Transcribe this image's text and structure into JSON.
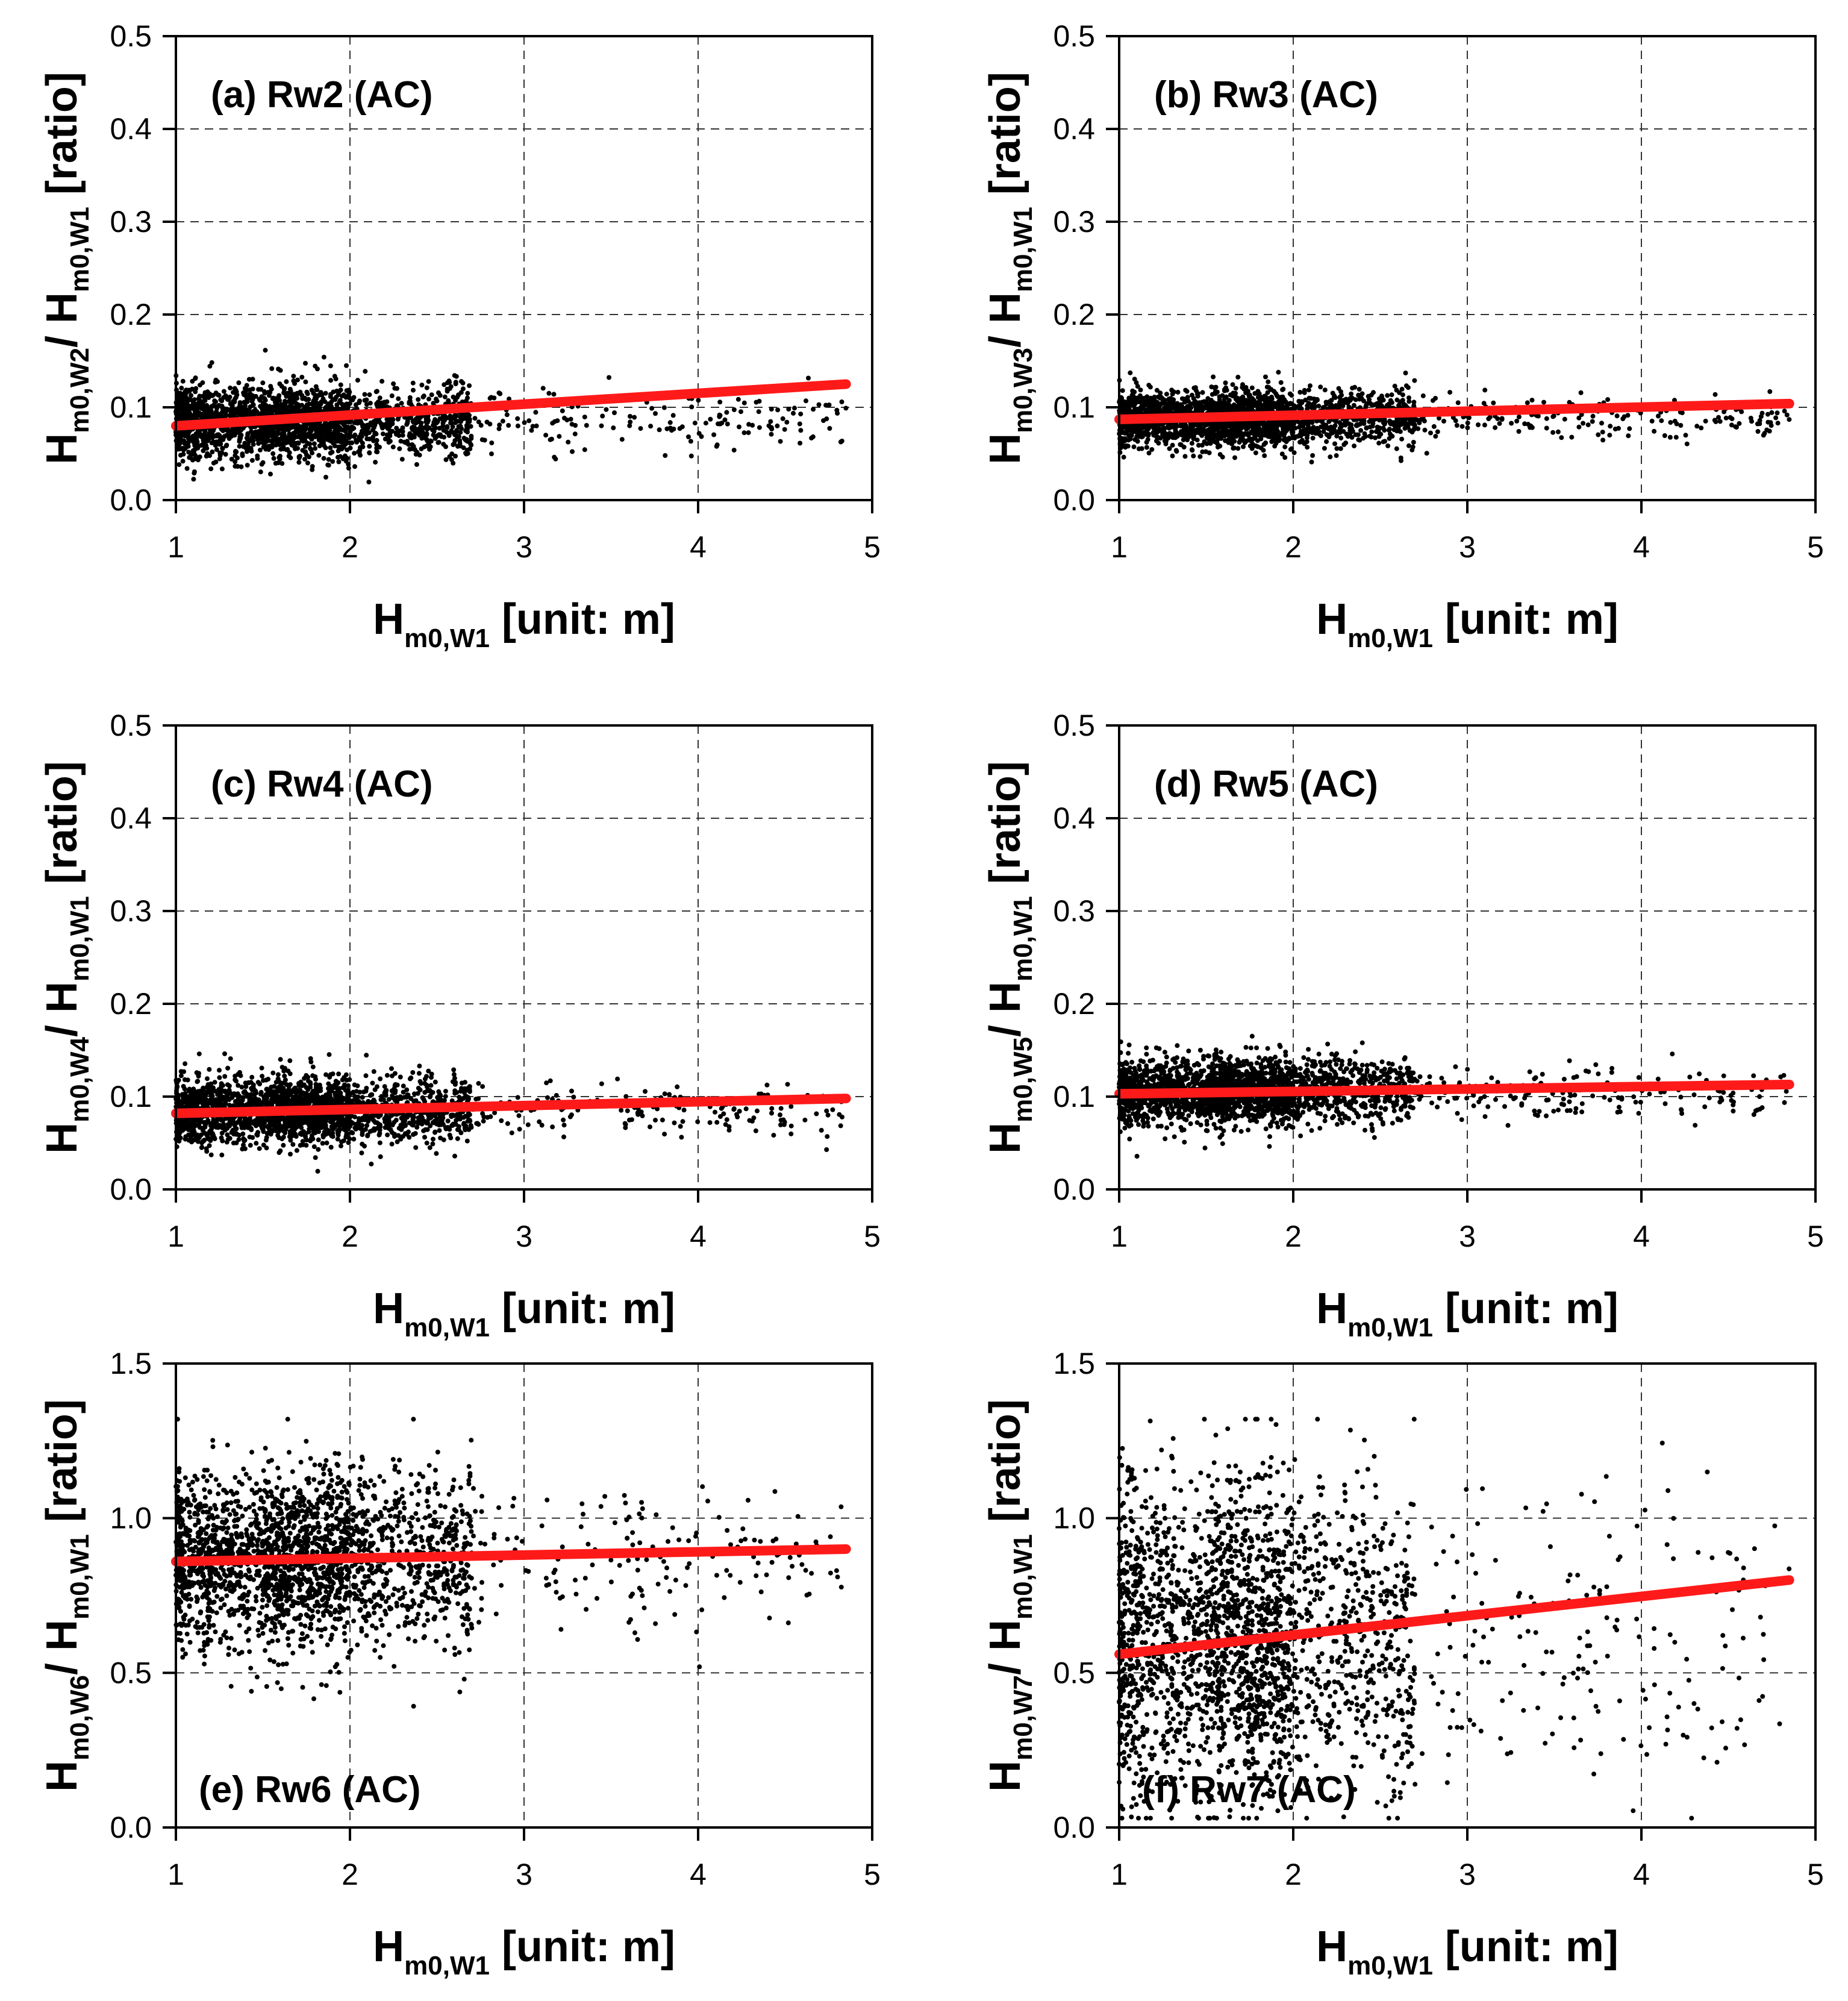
{
  "chart_data": [
    {
      "type": "scatter",
      "id": "a",
      "title": "(a) Rw2 (AC)",
      "xlabel": {
        "main": "H",
        "sub": "m0,W1",
        "rest": " [unit: m]"
      },
      "ylabel": {
        "main1": "H",
        "sub1": "m0,W2",
        "mid": "/ H",
        "sub2": "m0,W1",
        "rest": " [ratio]"
      },
      "xlim": [
        1,
        5
      ],
      "ylim": [
        0,
        0.5
      ],
      "xticks": [
        1,
        2,
        3,
        4,
        5
      ],
      "yticks": [
        0.0,
        0.1,
        0.2,
        0.3,
        0.4,
        0.5
      ],
      "yticklabels": [
        "0.0",
        "0.1",
        "0.2",
        "0.3",
        "0.4",
        "0.5"
      ],
      "grid": true,
      "scatter": {
        "n": 2400,
        "center": 0.085,
        "spread": 0.02,
        "x_max": 4.85,
        "seed": 11
      },
      "trend": {
        "x": [
          1.0,
          4.85
        ],
        "y": [
          0.08,
          0.125
        ]
      },
      "colors": {
        "points": "#000000",
        "trend": "#ff1a1a"
      }
    },
    {
      "type": "scatter",
      "id": "b",
      "title": "(b) Rw3 (AC)",
      "xlabel": {
        "main": "H",
        "sub": "m0,W1",
        "rest": " [unit: m]"
      },
      "ylabel": {
        "main1": "H",
        "sub1": "m0,W3",
        "mid": "/ H",
        "sub2": "m0,W1",
        "rest": " [ratio]"
      },
      "xlim": [
        1,
        5
      ],
      "ylim": [
        0,
        0.5
      ],
      "xticks": [
        1,
        2,
        3,
        4,
        5
      ],
      "yticks": [
        0.0,
        0.1,
        0.2,
        0.3,
        0.4,
        0.5
      ],
      "yticklabels": [
        "0.0",
        "0.1",
        "0.2",
        "0.3",
        "0.4",
        "0.5"
      ],
      "grid": true,
      "scatter": {
        "n": 2400,
        "center": 0.088,
        "spread": 0.015,
        "x_max": 4.85,
        "seed": 23
      },
      "trend": {
        "x": [
          1.0,
          4.85
        ],
        "y": [
          0.087,
          0.104
        ]
      },
      "colors": {
        "points": "#000000",
        "trend": "#ff1a1a"
      }
    },
    {
      "type": "scatter",
      "id": "c",
      "title": "(c) Rw4 (AC)",
      "xlabel": {
        "main": "H",
        "sub": "m0,W1",
        "rest": " [unit: m]"
      },
      "ylabel": {
        "main1": "H",
        "sub1": "m0,W4",
        "mid": "/ H",
        "sub2": "m0,W1",
        "rest": " [ratio]"
      },
      "xlim": [
        1,
        5
      ],
      "ylim": [
        0,
        0.5
      ],
      "xticks": [
        1,
        2,
        3,
        4,
        5
      ],
      "yticks": [
        0.0,
        0.1,
        0.2,
        0.3,
        0.4,
        0.5
      ],
      "yticklabels": [
        "0.0",
        "0.1",
        "0.2",
        "0.3",
        "0.4",
        "0.5"
      ],
      "grid": true,
      "scatter": {
        "n": 2400,
        "center": 0.085,
        "spread": 0.018,
        "x_max": 4.85,
        "seed": 37
      },
      "trend": {
        "x": [
          1.0,
          4.85
        ],
        "y": [
          0.082,
          0.098
        ]
      },
      "colors": {
        "points": "#000000",
        "trend": "#ff1a1a"
      }
    },
    {
      "type": "scatter",
      "id": "d",
      "title": "(d) Rw5 (AC)",
      "xlabel": {
        "main": "H",
        "sub": "m0,W1",
        "rest": " [unit: m]"
      },
      "ylabel": {
        "main1": "H",
        "sub1": "m0,W5",
        "mid": "/ H",
        "sub2": "m0,W1",
        "rest": " [ratio]"
      },
      "xlim": [
        1,
        5
      ],
      "ylim": [
        0,
        0.5
      ],
      "xticks": [
        1,
        2,
        3,
        4,
        5
      ],
      "yticks": [
        0.0,
        0.1,
        0.2,
        0.3,
        0.4,
        0.5
      ],
      "yticklabels": [
        "0.0",
        "0.1",
        "0.2",
        "0.3",
        "0.4",
        "0.5"
      ],
      "grid": true,
      "scatter": {
        "n": 2400,
        "center": 0.105,
        "spread": 0.018,
        "x_max": 4.85,
        "seed": 41
      },
      "trend": {
        "x": [
          1.0,
          4.85
        ],
        "y": [
          0.103,
          0.113
        ]
      },
      "colors": {
        "points": "#000000",
        "trend": "#ff1a1a"
      }
    },
    {
      "type": "scatter",
      "id": "e",
      "title": "(e) Rw6 (AC)",
      "xlabel": {
        "main": "H",
        "sub": "m0,W1",
        "rest": " [unit: m]"
      },
      "ylabel": {
        "main1": "H",
        "sub1": "m0,W6",
        "mid": "/ H",
        "sub2": "m0,W1",
        "rest": " [ratio]"
      },
      "xlim": [
        1,
        5
      ],
      "ylim": [
        0,
        1.5
      ],
      "xticks": [
        1,
        2,
        3,
        4,
        5
      ],
      "yticks": [
        0.0,
        0.5,
        1.0,
        1.5
      ],
      "yticklabels": [
        "0.0",
        "0.5",
        "1.0",
        "1.5"
      ],
      "grid": true,
      "scatter": {
        "n": 2400,
        "center": 0.87,
        "spread": 0.14,
        "x_max": 4.85,
        "seed": 53
      },
      "trend": {
        "x": [
          1.0,
          4.85
        ],
        "y": [
          0.86,
          0.9
        ]
      },
      "colors": {
        "points": "#000000",
        "trend": "#ff1a1a"
      }
    },
    {
      "type": "scatter",
      "id": "f",
      "title": "(f) Rw7 (AC)",
      "xlabel": {
        "main": "H",
        "sub": "m0,W1",
        "rest": " [unit: m]"
      },
      "ylabel": {
        "main1": "H",
        "sub1": "m0,W7",
        "mid": "/ H",
        "sub2": "m0,W1",
        "rest": " [ratio]"
      },
      "xlim": [
        1,
        5
      ],
      "ylim": [
        0,
        1.5
      ],
      "xticks": [
        1,
        2,
        3,
        4,
        5
      ],
      "yticks": [
        0.0,
        0.5,
        1.0,
        1.5
      ],
      "yticklabels": [
        "0.0",
        "0.5",
        "1.0",
        "1.5"
      ],
      "grid": true,
      "scatter": {
        "n": 2400,
        "center": 0.6,
        "spread": 0.24,
        "x_max": 4.85,
        "seed": 67
      },
      "trend": {
        "x": [
          1.0,
          4.85
        ],
        "y": [
          0.56,
          0.8
        ]
      },
      "colors": {
        "points": "#000000",
        "trend": "#ff1a1a"
      }
    }
  ]
}
